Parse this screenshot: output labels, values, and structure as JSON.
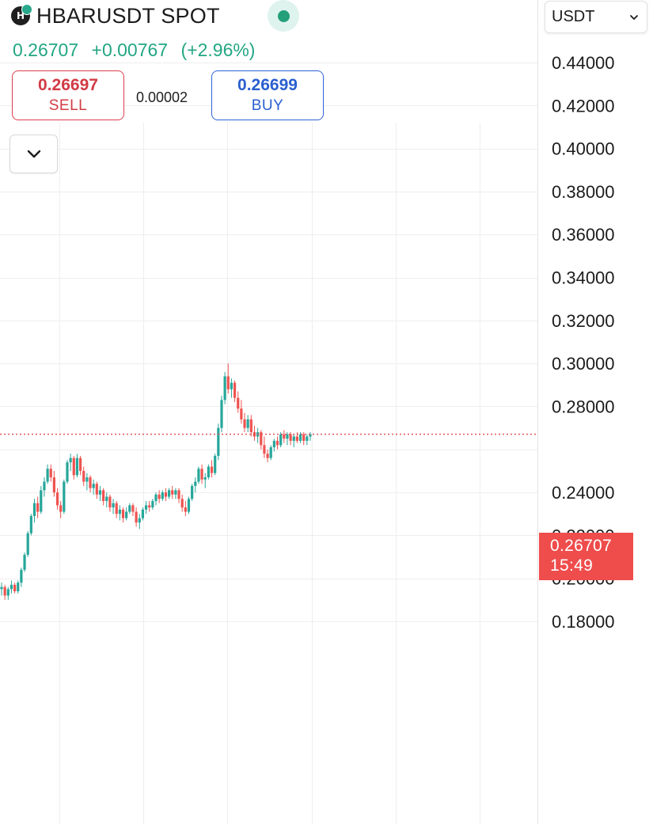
{
  "header": {
    "symbol": "HBARUSDT SPOT",
    "logo_letter": "H",
    "status_color": "#23a07a"
  },
  "quote": {
    "last": "0.26707",
    "change": "+0.00767",
    "change_pct": "(+2.96%)",
    "color": "#22a683"
  },
  "trade": {
    "sell_price": "0.26697",
    "sell_label": "SELL",
    "spread": "0.00002",
    "buy_price": "0.26699",
    "buy_label": "BUY"
  },
  "currency": {
    "selected": "USDT"
  },
  "price_tag": {
    "price": "0.26707",
    "countdown": "15:49",
    "color": "#ef4c4c"
  },
  "colors": {
    "up": "#26a69a",
    "down": "#ef5350",
    "grid": "#eeeeee"
  },
  "chart_data": {
    "type": "candlestick",
    "ylim": [
      0.17,
      0.44
    ],
    "y_ticks": [
      "0.44000",
      "0.42000",
      "0.40000",
      "0.38000",
      "0.36000",
      "0.34000",
      "0.32000",
      "0.30000",
      "0.28000",
      "0.24000",
      "0.22000",
      "0.20000",
      "0.18000"
    ],
    "current_price": 0.26707,
    "grid": true,
    "candles": [
      [
        0.195,
        0.198,
        0.192,
        0.196
      ],
      [
        0.196,
        0.197,
        0.19,
        0.192
      ],
      [
        0.192,
        0.196,
        0.19,
        0.195
      ],
      [
        0.195,
        0.199,
        0.193,
        0.197
      ],
      [
        0.197,
        0.198,
        0.193,
        0.194
      ],
      [
        0.194,
        0.199,
        0.193,
        0.198
      ],
      [
        0.198,
        0.205,
        0.196,
        0.204
      ],
      [
        0.204,
        0.212,
        0.203,
        0.211
      ],
      [
        0.211,
        0.222,
        0.21,
        0.221
      ],
      [
        0.221,
        0.23,
        0.22,
        0.229
      ],
      [
        0.229,
        0.237,
        0.226,
        0.235
      ],
      [
        0.235,
        0.238,
        0.228,
        0.231
      ],
      [
        0.231,
        0.243,
        0.23,
        0.241
      ],
      [
        0.241,
        0.247,
        0.238,
        0.245
      ],
      [
        0.245,
        0.253,
        0.244,
        0.251
      ],
      [
        0.251,
        0.253,
        0.245,
        0.247
      ],
      [
        0.247,
        0.25,
        0.238,
        0.24
      ],
      [
        0.24,
        0.242,
        0.232,
        0.234
      ],
      [
        0.234,
        0.236,
        0.228,
        0.231
      ],
      [
        0.231,
        0.246,
        0.23,
        0.245
      ],
      [
        0.245,
        0.255,
        0.244,
        0.254
      ],
      [
        0.254,
        0.258,
        0.25,
        0.256
      ],
      [
        0.256,
        0.257,
        0.246,
        0.248
      ],
      [
        0.248,
        0.258,
        0.247,
        0.256
      ],
      [
        0.256,
        0.257,
        0.248,
        0.25
      ],
      [
        0.25,
        0.252,
        0.243,
        0.245
      ],
      [
        0.245,
        0.249,
        0.241,
        0.247
      ],
      [
        0.247,
        0.248,
        0.24,
        0.242
      ],
      [
        0.242,
        0.246,
        0.239,
        0.244
      ],
      [
        0.244,
        0.245,
        0.237,
        0.239
      ],
      [
        0.239,
        0.243,
        0.236,
        0.241
      ],
      [
        0.241,
        0.242,
        0.234,
        0.236
      ],
      [
        0.236,
        0.24,
        0.233,
        0.238
      ],
      [
        0.238,
        0.239,
        0.231,
        0.233
      ],
      [
        0.233,
        0.237,
        0.23,
        0.235
      ],
      [
        0.235,
        0.236,
        0.228,
        0.23
      ],
      [
        0.23,
        0.234,
        0.227,
        0.232
      ],
      [
        0.232,
        0.233,
        0.226,
        0.228
      ],
      [
        0.228,
        0.233,
        0.227,
        0.231
      ],
      [
        0.231,
        0.235,
        0.23,
        0.234
      ],
      [
        0.234,
        0.235,
        0.229,
        0.231
      ],
      [
        0.231,
        0.233,
        0.224,
        0.226
      ],
      [
        0.226,
        0.23,
        0.223,
        0.228
      ],
      [
        0.228,
        0.233,
        0.227,
        0.232
      ],
      [
        0.232,
        0.236,
        0.23,
        0.234
      ],
      [
        0.234,
        0.236,
        0.231,
        0.233
      ],
      [
        0.233,
        0.237,
        0.232,
        0.236
      ],
      [
        0.236,
        0.24,
        0.234,
        0.239
      ],
      [
        0.239,
        0.241,
        0.235,
        0.237
      ],
      [
        0.237,
        0.241,
        0.236,
        0.24
      ],
      [
        0.24,
        0.242,
        0.236,
        0.238
      ],
      [
        0.238,
        0.242,
        0.237,
        0.241
      ],
      [
        0.241,
        0.243,
        0.237,
        0.239
      ],
      [
        0.239,
        0.242,
        0.237,
        0.241
      ],
      [
        0.241,
        0.242,
        0.235,
        0.237
      ],
      [
        0.237,
        0.239,
        0.231,
        0.233
      ],
      [
        0.233,
        0.236,
        0.229,
        0.231
      ],
      [
        0.231,
        0.238,
        0.23,
        0.237
      ],
      [
        0.237,
        0.244,
        0.236,
        0.243
      ],
      [
        0.243,
        0.247,
        0.24,
        0.245
      ],
      [
        0.245,
        0.252,
        0.244,
        0.251
      ],
      [
        0.251,
        0.253,
        0.244,
        0.246
      ],
      [
        0.246,
        0.249,
        0.242,
        0.247
      ],
      [
        0.247,
        0.253,
        0.246,
        0.252
      ],
      [
        0.252,
        0.255,
        0.247,
        0.249
      ],
      [
        0.249,
        0.258,
        0.248,
        0.257
      ],
      [
        0.257,
        0.272,
        0.255,
        0.27
      ],
      [
        0.27,
        0.285,
        0.268,
        0.283
      ],
      [
        0.283,
        0.296,
        0.281,
        0.294
      ],
      [
        0.294,
        0.3,
        0.286,
        0.288
      ],
      [
        0.288,
        0.293,
        0.284,
        0.291
      ],
      [
        0.291,
        0.292,
        0.282,
        0.284
      ],
      [
        0.284,
        0.287,
        0.277,
        0.279
      ],
      [
        0.279,
        0.283,
        0.272,
        0.274
      ],
      [
        0.274,
        0.277,
        0.268,
        0.27
      ],
      [
        0.27,
        0.276,
        0.268,
        0.274
      ],
      [
        0.274,
        0.276,
        0.266,
        0.268
      ],
      [
        0.268,
        0.271,
        0.264,
        0.266
      ],
      [
        0.266,
        0.27,
        0.263,
        0.268
      ],
      [
        0.268,
        0.269,
        0.26,
        0.262
      ],
      [
        0.262,
        0.266,
        0.256,
        0.258
      ],
      [
        0.258,
        0.26,
        0.254,
        0.256
      ],
      [
        0.256,
        0.262,
        0.255,
        0.261
      ],
      [
        0.261,
        0.265,
        0.259,
        0.264
      ],
      [
        0.264,
        0.266,
        0.26,
        0.262
      ],
      [
        0.262,
        0.268,
        0.261,
        0.267
      ],
      [
        0.267,
        0.269,
        0.263,
        0.265
      ],
      [
        0.265,
        0.268,
        0.262,
        0.267
      ],
      [
        0.267,
        0.268,
        0.262,
        0.264
      ],
      [
        0.264,
        0.267,
        0.261,
        0.266
      ],
      [
        0.266,
        0.268,
        0.263,
        0.264
      ],
      [
        0.264,
        0.268,
        0.263,
        0.267
      ],
      [
        0.267,
        0.268,
        0.262,
        0.264
      ],
      [
        0.264,
        0.267,
        0.262,
        0.266
      ],
      [
        0.266,
        0.268,
        0.264,
        0.267
      ]
    ]
  }
}
